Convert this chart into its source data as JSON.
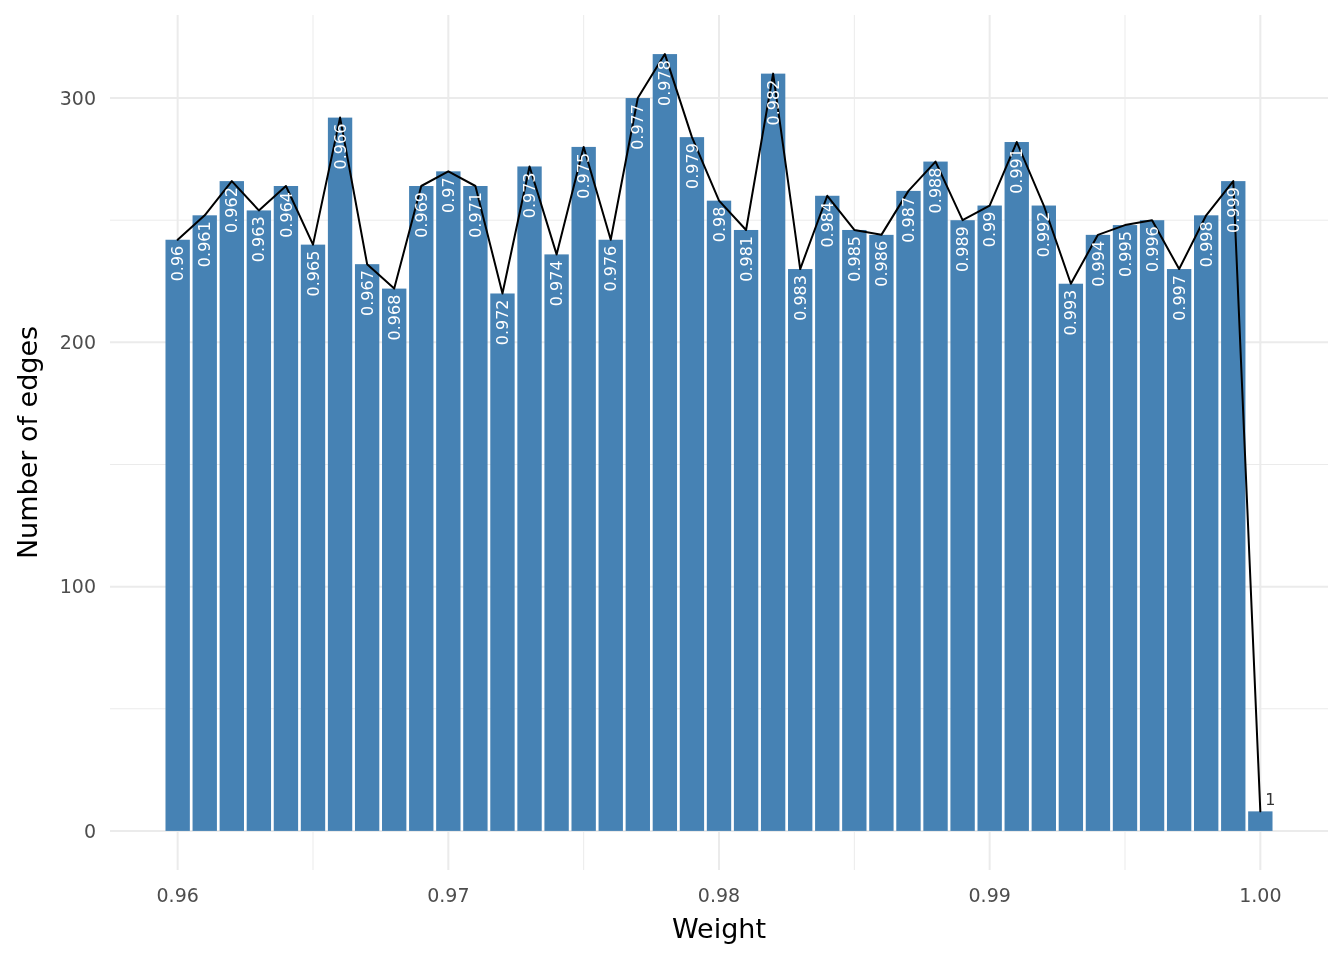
{
  "chart_data": {
    "type": "bar",
    "xlabel": "Weight",
    "ylabel": "Number of edges",
    "x": [
      0.96,
      0.961,
      0.962,
      0.963,
      0.964,
      0.965,
      0.966,
      0.967,
      0.968,
      0.969,
      0.97,
      0.971,
      0.972,
      0.973,
      0.974,
      0.975,
      0.976,
      0.977,
      0.978,
      0.979,
      0.98,
      0.981,
      0.982,
      0.983,
      0.984,
      0.985,
      0.986,
      0.987,
      0.988,
      0.989,
      0.99,
      0.991,
      0.992,
      0.993,
      0.994,
      0.995,
      0.996,
      0.997,
      0.998,
      0.999,
      1
    ],
    "series": [
      {
        "color": "#4682b4",
        "values": [
          242,
          252,
          266,
          254,
          264,
          240,
          292,
          232,
          222,
          264,
          270,
          264,
          220,
          272,
          236,
          280,
          242,
          300,
          318,
          284,
          258,
          246,
          310,
          230,
          260,
          246,
          244,
          262,
          274,
          250,
          256,
          282,
          256,
          224,
          244,
          248,
          250,
          230,
          252,
          266,
          8
        ]
      },
      {
        "type": "line",
        "color": "#000000",
        "values": [
          242,
          252,
          266,
          254,
          264,
          240,
          292,
          232,
          222,
          264,
          270,
          264,
          220,
          272,
          236,
          280,
          242,
          300,
          318,
          284,
          258,
          246,
          310,
          230,
          260,
          246,
          244,
          262,
          274,
          250,
          256,
          282,
          256,
          224,
          244,
          248,
          250,
          230,
          252,
          266,
          8
        ]
      }
    ],
    "annotations": [
      {
        "text": "0.96",
        "x": 0.96,
        "y": 242
      },
      {
        "text": "0.961",
        "x": 0.961,
        "y": 252
      },
      {
        "text": "0.962",
        "x": 0.962,
        "y": 266
      },
      {
        "text": "0.963",
        "x": 0.963,
        "y": 254
      },
      {
        "text": "0.964",
        "x": 0.964,
        "y": 264
      },
      {
        "text": "0.965",
        "x": 0.965,
        "y": 240
      },
      {
        "text": "0.966",
        "x": 0.966,
        "y": 292
      },
      {
        "text": "0.967",
        "x": 0.967,
        "y": 232
      },
      {
        "text": "0.968",
        "x": 0.968,
        "y": 222
      },
      {
        "text": "0.969",
        "x": 0.969,
        "y": 264
      },
      {
        "text": "0.97",
        "x": 0.97,
        "y": 270
      },
      {
        "text": "0.971",
        "x": 0.971,
        "y": 264
      },
      {
        "text": "0.972",
        "x": 0.972,
        "y": 220
      },
      {
        "text": "0.973",
        "x": 0.973,
        "y": 272
      },
      {
        "text": "0.974",
        "x": 0.974,
        "y": 236
      },
      {
        "text": "0.975",
        "x": 0.975,
        "y": 280
      },
      {
        "text": "0.976",
        "x": 0.976,
        "y": 242
      },
      {
        "text": "0.977",
        "x": 0.977,
        "y": 300
      },
      {
        "text": "0.978",
        "x": 0.978,
        "y": 318
      },
      {
        "text": "0.979",
        "x": 0.979,
        "y": 284
      },
      {
        "text": "0.98",
        "x": 0.98,
        "y": 258
      },
      {
        "text": "0.981",
        "x": 0.981,
        "y": 246
      },
      {
        "text": "0.982",
        "x": 0.982,
        "y": 310
      },
      {
        "text": "0.983",
        "x": 0.983,
        "y": 230
      },
      {
        "text": "0.984",
        "x": 0.984,
        "y": 260
      },
      {
        "text": "0.985",
        "x": 0.985,
        "y": 246
      },
      {
        "text": "0.986",
        "x": 0.986,
        "y": 244
      },
      {
        "text": "0.987",
        "x": 0.987,
        "y": 262
      },
      {
        "text": "0.988",
        "x": 0.988,
        "y": 274
      },
      {
        "text": "0.989",
        "x": 0.989,
        "y": 250
      },
      {
        "text": "0.99",
        "x": 0.99,
        "y": 256
      },
      {
        "text": "0.991",
        "x": 0.991,
        "y": 282
      },
      {
        "text": "0.992",
        "x": 0.992,
        "y": 256
      },
      {
        "text": "0.993",
        "x": 0.993,
        "y": 224
      },
      {
        "text": "0.994",
        "x": 0.994,
        "y": 244
      },
      {
        "text": "0.995",
        "x": 0.995,
        "y": 248
      },
      {
        "text": "0.996",
        "x": 0.996,
        "y": 250
      },
      {
        "text": "0.997",
        "x": 0.997,
        "y": 230
      },
      {
        "text": "0.998",
        "x": 0.998,
        "y": 252
      },
      {
        "text": "0.999",
        "x": 0.999,
        "y": 266
      },
      {
        "text": "1",
        "x": 1,
        "y": 8
      }
    ],
    "xlim": [
      0.9575,
      1.0025
    ],
    "xticks": [
      {
        "value": 0.96,
        "label": "0.96"
      },
      {
        "value": 0.97,
        "label": "0.97"
      },
      {
        "value": 0.98,
        "label": "0.98"
      },
      {
        "value": 0.99,
        "label": "0.99"
      },
      {
        "value": 1,
        "label": "1.00"
      }
    ],
    "ylim": [
      -16,
      334
    ],
    "yticks": [
      0,
      100,
      200,
      300
    ],
    "grid": true
  }
}
